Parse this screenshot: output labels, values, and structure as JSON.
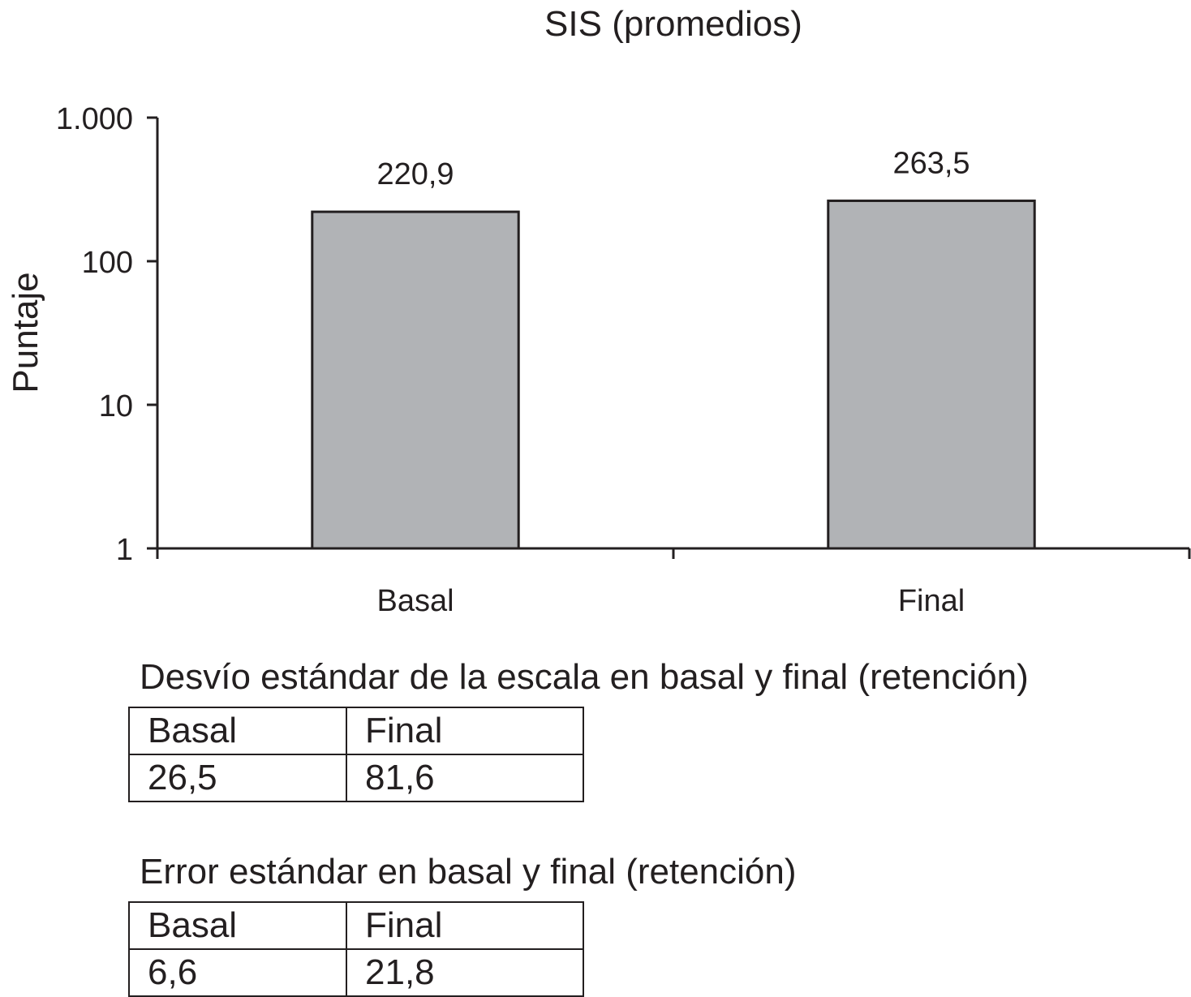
{
  "chart_data": {
    "type": "bar",
    "title": "SIS (promedios)",
    "ylabel": "Puntaje",
    "xlabel": "",
    "yscale": "log",
    "ylim": [
      1,
      1000
    ],
    "yticks": [
      1,
      10,
      100,
      1000
    ],
    "ytick_labels": [
      "1",
      "10",
      "100",
      "1.000"
    ],
    "categories": [
      "Basal",
      "Final"
    ],
    "values": [
      220.9,
      263.5
    ],
    "value_labels": [
      "220,9",
      "263,5"
    ],
    "bar_color": "#b1b3b6",
    "grid": false,
    "legend": "none"
  },
  "tables": [
    {
      "caption": "Desvío estándar de la escala en basal y final (retención)",
      "header": [
        "Basal",
        "Final"
      ],
      "row": [
        "26,5",
        "81,6"
      ]
    },
    {
      "caption": "Error  estándar en basal y final (retención)",
      "header": [
        "Basal",
        "Final"
      ],
      "row": [
        "6,6",
        "21,8"
      ]
    }
  ]
}
